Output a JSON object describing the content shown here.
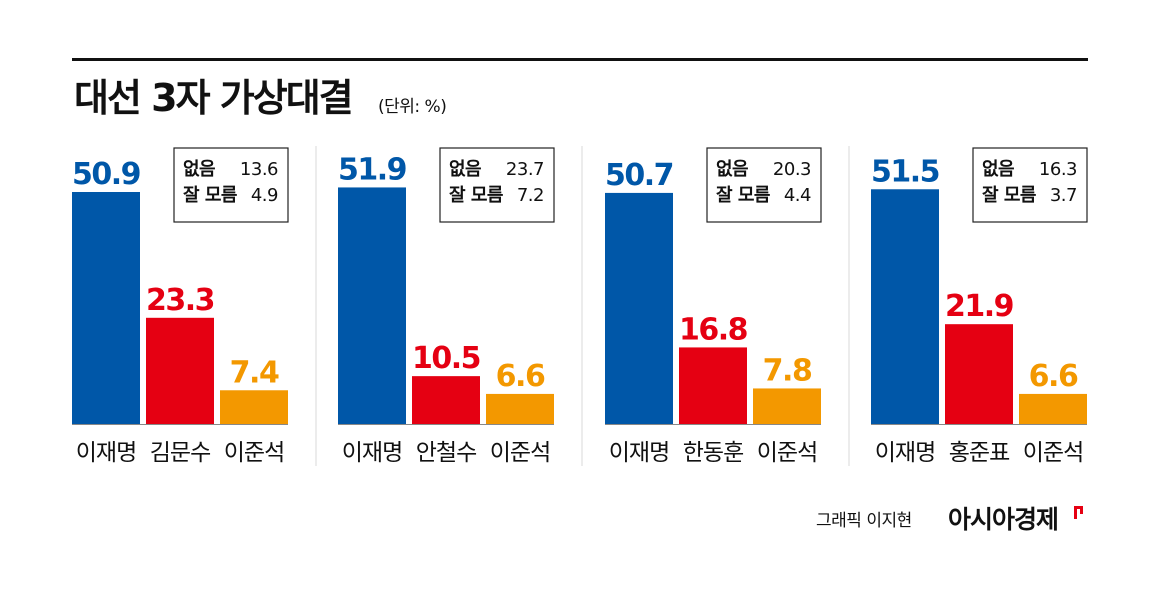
{
  "header": {
    "title": "대선 3자 가상대결",
    "unit": "(단위: %)"
  },
  "colors": {
    "blue": "#0057a8",
    "red": "#e50012",
    "orange": "#f39800",
    "box_border": "#222222",
    "divider": "#d9d9d9"
  },
  "chart_data": [
    {
      "type": "bar",
      "categories": [
        "이재명",
        "김문수",
        "이준석"
      ],
      "values": [
        50.9,
        23.3,
        7.4
      ],
      "ylim": [
        0,
        55
      ],
      "legend": [
        {
          "label": "없음",
          "value": "13.6"
        },
        {
          "label": "잘 모름",
          "value": "4.9"
        }
      ]
    },
    {
      "type": "bar",
      "categories": [
        "이재명",
        "안철수",
        "이준석"
      ],
      "values": [
        51.9,
        10.5,
        6.6
      ],
      "ylim": [
        0,
        55
      ],
      "legend": [
        {
          "label": "없음",
          "value": "23.7"
        },
        {
          "label": "잘 모름",
          "value": "7.2"
        }
      ]
    },
    {
      "type": "bar",
      "categories": [
        "이재명",
        "한동훈",
        "이준석"
      ],
      "values": [
        50.7,
        16.8,
        7.8
      ],
      "ylim": [
        0,
        55
      ],
      "legend": [
        {
          "label": "없음",
          "value": "20.3"
        },
        {
          "label": "잘 모름",
          "value": "4.4"
        }
      ]
    },
    {
      "type": "bar",
      "categories": [
        "이재명",
        "홍준표",
        "이준석"
      ],
      "values": [
        51.5,
        21.9,
        6.6
      ],
      "ylim": [
        0,
        55
      ],
      "legend": [
        {
          "label": "없음",
          "value": "16.3"
        },
        {
          "label": "잘 모름",
          "value": "3.7"
        }
      ]
    }
  ],
  "footer": {
    "credit": "그래픽 이지현",
    "brand": "아시아경제"
  }
}
